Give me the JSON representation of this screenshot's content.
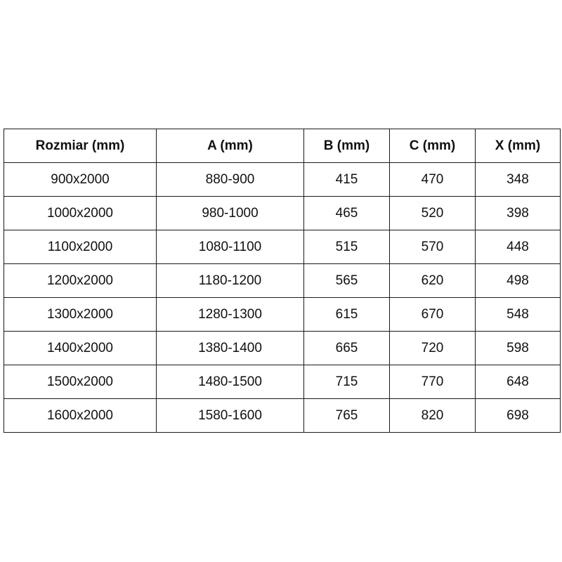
{
  "table": {
    "headers": [
      "Rozmiar (mm)",
      "A (mm)",
      "B (mm)",
      "C (mm)",
      "X (mm)"
    ],
    "rows": [
      [
        "900x2000",
        "880-900",
        "415",
        "470",
        "348"
      ],
      [
        "1000x2000",
        "980-1000",
        "465",
        "520",
        "398"
      ],
      [
        "1100x2000",
        "1080-1100",
        "515",
        "570",
        "448"
      ],
      [
        "1200x2000",
        "1180-1200",
        "565",
        "620",
        "498"
      ],
      [
        "1300x2000",
        "1280-1300",
        "615",
        "670",
        "548"
      ],
      [
        "1400x2000",
        "1380-1400",
        "665",
        "720",
        "598"
      ],
      [
        "1500x2000",
        "1480-1500",
        "715",
        "770",
        "648"
      ],
      [
        "1600x2000",
        "1580-1600",
        "765",
        "820",
        "698"
      ]
    ]
  }
}
